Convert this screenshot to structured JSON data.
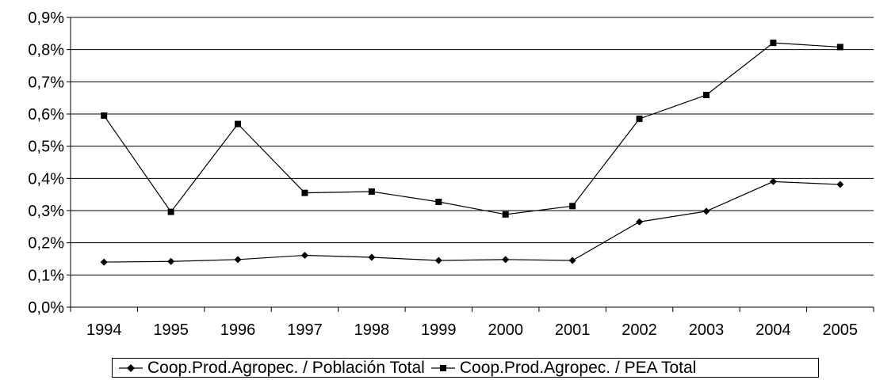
{
  "chart_data": {
    "type": "line",
    "categories": [
      "1994",
      "1995",
      "1996",
      "1997",
      "1998",
      "1999",
      "2000",
      "2001",
      "2002",
      "2003",
      "2004",
      "2005"
    ],
    "series": [
      {
        "name": "Coop.Prod.Agropec. / Población Total",
        "marker": "diamond",
        "color": "#000000",
        "values": [
          0.14,
          0.142,
          0.148,
          0.161,
          0.155,
          0.145,
          0.148,
          0.145,
          0.265,
          0.298,
          0.39,
          0.381
        ]
      },
      {
        "name": "Coop.Prod.Agropec. / PEA Total",
        "marker": "square",
        "color": "#000000",
        "values": [
          0.595,
          0.296,
          0.569,
          0.355,
          0.359,
          0.327,
          0.288,
          0.314,
          0.585,
          0.659,
          0.821,
          0.808
        ]
      }
    ],
    "yticks": [
      "0,0%",
      "0,1%",
      "0,2%",
      "0,3%",
      "0,4%",
      "0,5%",
      "0,6%",
      "0,7%",
      "0,8%",
      "0,9%"
    ],
    "ylim": [
      0,
      0.9
    ],
    "ystep": 0.1,
    "ylabel": "",
    "xlabel": "",
    "title": "",
    "grid": true,
    "legend": "bottom"
  }
}
